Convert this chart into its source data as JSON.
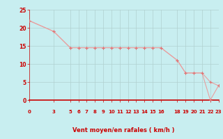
{
  "xlabel": "Vent moyen/en rafales ( km/h )",
  "bg_color": "#c8eef0",
  "grid_color": "#b0d0d0",
  "line_color": "#e8a0a0",
  "marker_color": "#e07070",
  "axis_color": "#cc0000",
  "tick_label_color": "#cc0000",
  "series1_x": [
    0,
    3,
    5,
    6,
    7,
    8,
    9,
    10,
    11,
    12,
    13,
    14,
    15,
    16,
    18,
    19,
    20,
    21,
    22,
    23
  ],
  "series1_y": [
    22,
    19,
    14.5,
    14.5,
    14.5,
    14.5,
    14.5,
    14.5,
    14.5,
    14.5,
    14.5,
    14.5,
    14.5,
    14.5,
    11,
    7.5,
    7.5,
    7.5,
    5,
    4
  ],
  "series2_x": [
    0,
    3,
    5,
    6,
    7,
    8,
    9,
    10,
    11,
    12,
    13,
    14,
    15,
    16,
    18,
    19,
    20,
    21,
    22,
    23
  ],
  "series2_y": [
    22,
    19,
    14.5,
    14.5,
    14.5,
    14.5,
    14.5,
    14.5,
    14.5,
    14.5,
    14.5,
    14.5,
    14.5,
    14.5,
    11,
    7.5,
    7.5,
    7.5,
    0,
    4
  ],
  "xlim": [
    0,
    23
  ],
  "ylim": [
    0,
    25
  ],
  "xticks": [
    0,
    3,
    5,
    6,
    7,
    8,
    9,
    10,
    11,
    12,
    13,
    14,
    15,
    16,
    18,
    19,
    20,
    21,
    22,
    23
  ],
  "yticks": [
    0,
    5,
    10,
    15,
    20,
    25
  ]
}
